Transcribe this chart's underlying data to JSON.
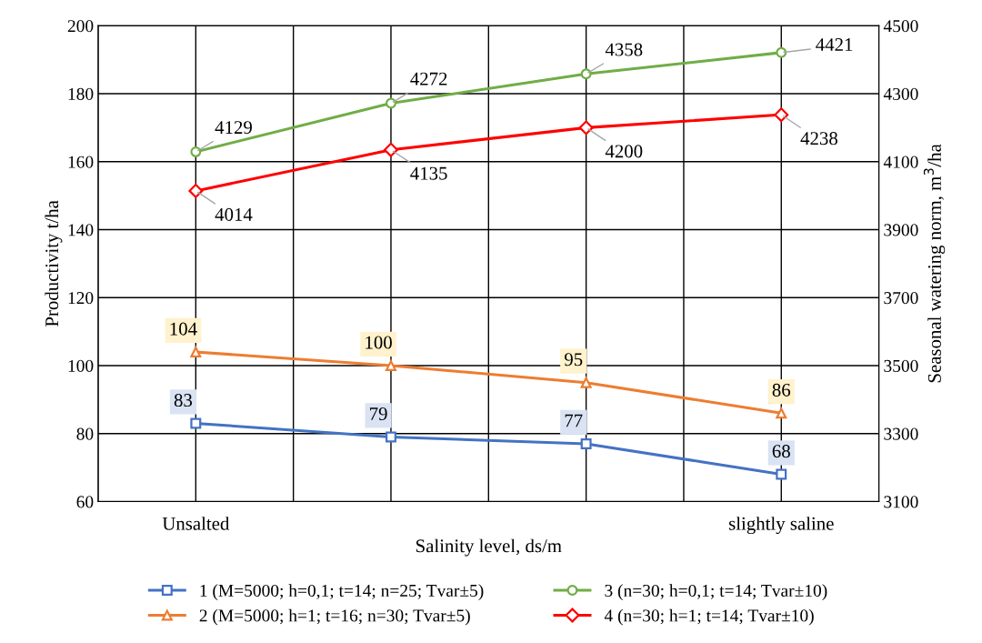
{
  "chart_data": {
    "type": "line",
    "xlabel": "Salinity level, ds/m",
    "ylabel": "Productivity t/ha",
    "y2label": "Seasonal watering norm, m$^{3}$/ha",
    "categories": [
      "Unsalted",
      null,
      null,
      "slightly saline"
    ],
    "ylim": [
      60,
      200
    ],
    "yticks": [
      60,
      80,
      100,
      120,
      140,
      160,
      180,
      200
    ],
    "y2lim": [
      3100,
      4500
    ],
    "y2ticks": [
      3100,
      3300,
      3500,
      3700,
      3900,
      4100,
      4300,
      4500
    ],
    "grid": true,
    "legend": "bottom",
    "data_labels": true,
    "series": [
      {
        "name": "1 (M=5000; h=0,1; t=14; n=25; Tvar±5)",
        "color": "#4472c4",
        "marker": "square",
        "values": [
          83,
          79,
          77,
          68
        ]
      },
      {
        "name": "2 (M=5000; h=1; t=16; n=30; Tvar±5)",
        "color": "#ed7d31",
        "marker": "triangle",
        "values": [
          104,
          100,
          95,
          86
        ]
      },
      {
        "name": "3 (n=30; h=0,1; t=14; Tvar±10)",
        "color": "#70ad47",
        "marker": "circle",
        "axis": "y2",
        "values": [
          4129,
          4272,
          4358,
          4421
        ]
      },
      {
        "name": "4 (n=30; h=1; t=14; Tvar±10)",
        "color": "#ff0000",
        "marker": "diamond",
        "axis": "y2",
        "values": [
          4014,
          4135,
          4200,
          4238
        ]
      }
    ]
  }
}
